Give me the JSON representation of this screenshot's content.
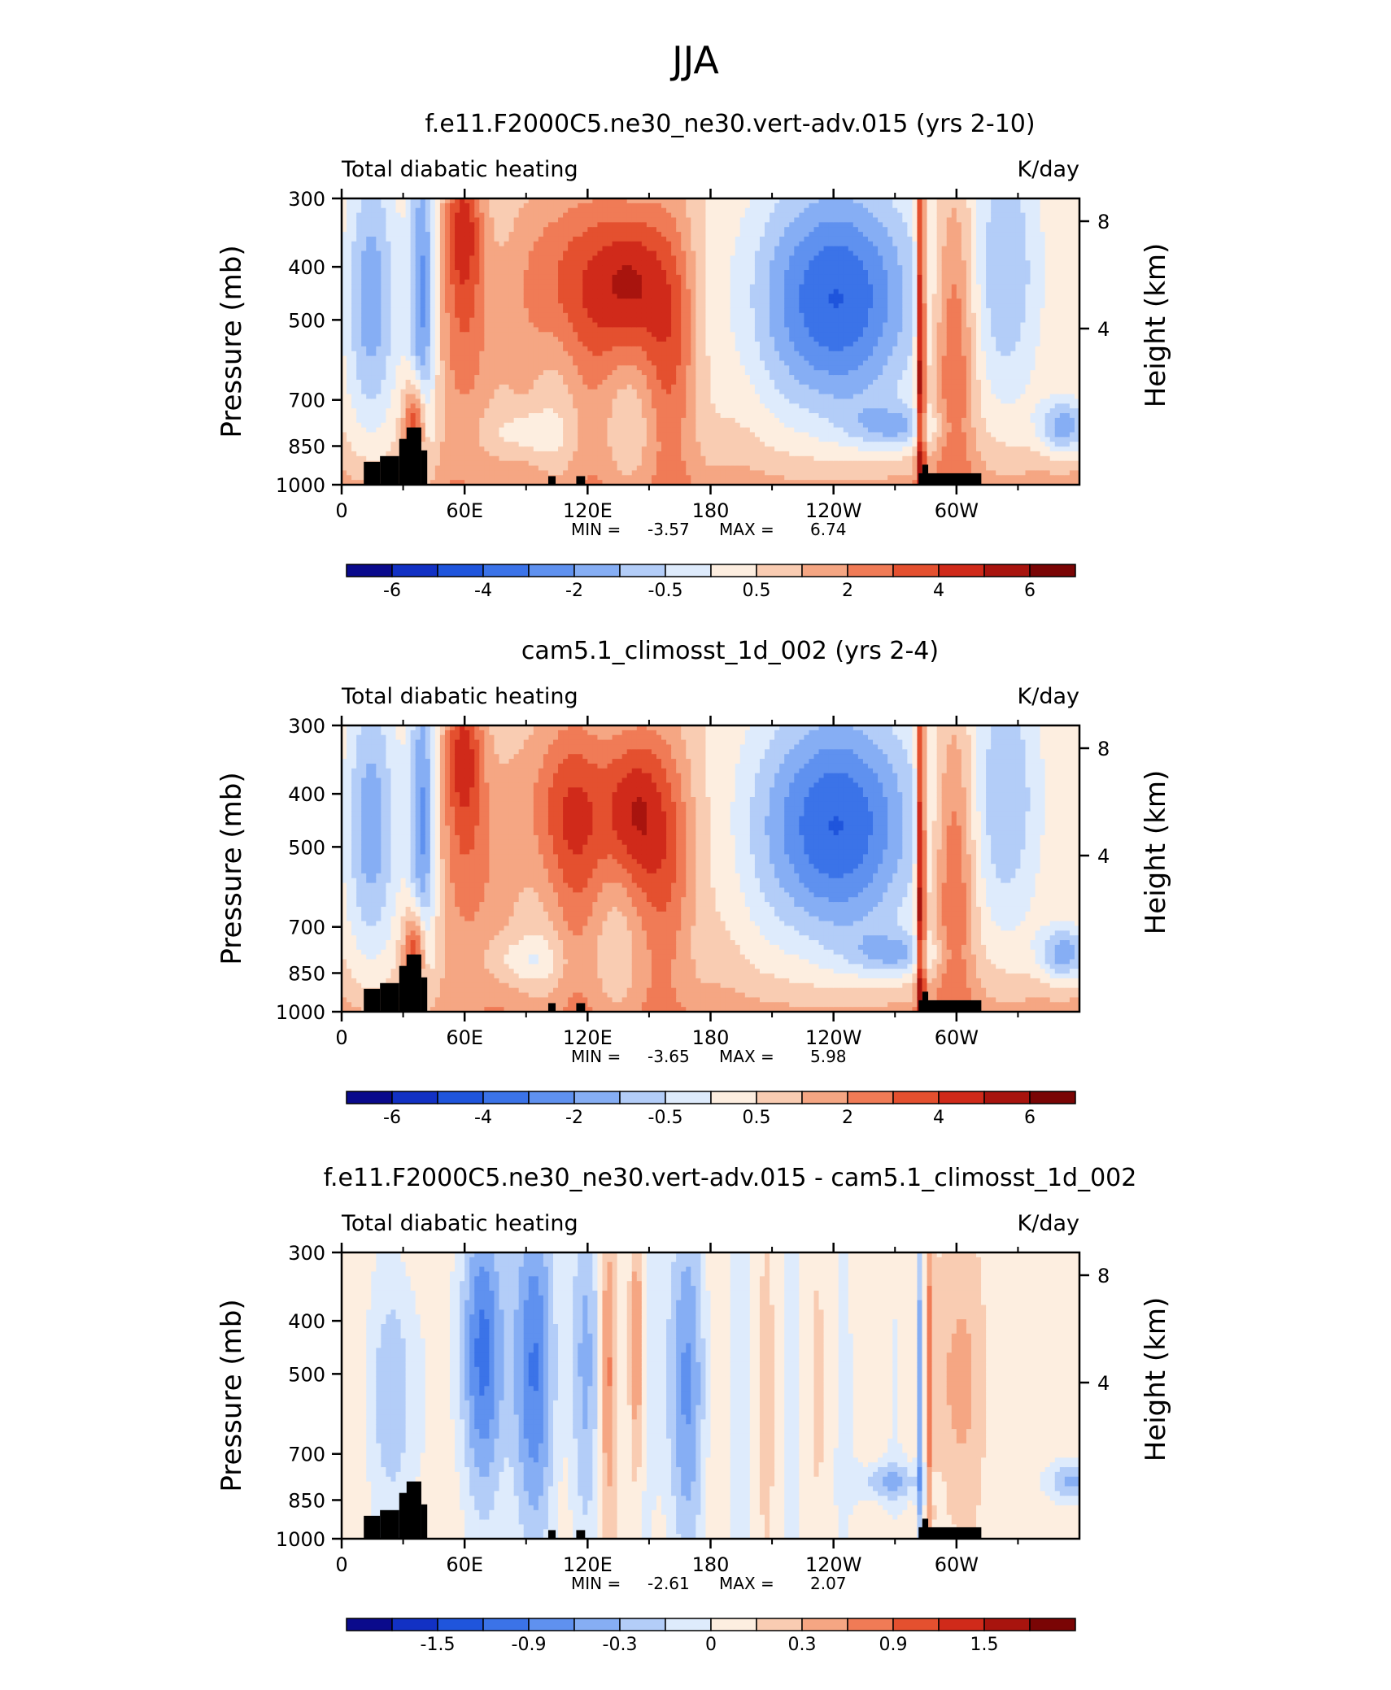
{
  "suptitle": "JJA",
  "chart_data": [
    {
      "type": "heatmap",
      "title": "f.e11.F2000C5.ne30_ne30.vert-adv.015 (yrs 2-10)",
      "left_string": "Total diabatic heating",
      "right_string": "K/day",
      "ylabel": "Pressure (mb)",
      "ylabel_right": "Height (km)",
      "yticks": [
        "300",
        "400",
        "500",
        "700",
        "850",
        "1000"
      ],
      "yticks_right": [
        "8",
        "4"
      ],
      "xticks": [
        "0",
        "60E",
        "120E",
        "180",
        "120W",
        "60W"
      ],
      "min_label": "MIN =",
      "min_value": "-3.57",
      "max_label": "MAX =",
      "max_value": "6.74",
      "colorbar_labels": [
        "-6",
        "-4",
        "-2",
        "-0.5",
        "0.5",
        "2",
        "4",
        "6"
      ],
      "terrain": "black-mask"
    },
    {
      "type": "heatmap",
      "title": "cam5.1_climosst_1d_002 (yrs 2-4)",
      "left_string": "Total diabatic heating",
      "right_string": "K/day",
      "ylabel": "Pressure (mb)",
      "ylabel_right": "Height (km)",
      "yticks": [
        "300",
        "400",
        "500",
        "700",
        "850",
        "1000"
      ],
      "yticks_right": [
        "8",
        "4"
      ],
      "xticks": [
        "0",
        "60E",
        "120E",
        "180",
        "120W",
        "60W"
      ],
      "min_label": "MIN =",
      "min_value": "-3.65",
      "max_label": "MAX =",
      "max_value": "5.98",
      "colorbar_labels": [
        "-6",
        "-4",
        "-2",
        "-0.5",
        "0.5",
        "2",
        "4",
        "6"
      ],
      "terrain": "black-mask"
    },
    {
      "type": "heatmap",
      "title": "f.e11.F2000C5.ne30_ne30.vert-adv.015 - cam5.1_climosst_1d_002",
      "left_string": "Total diabatic heating",
      "right_string": "K/day",
      "ylabel": "Pressure (mb)",
      "ylabel_right": "Height (km)",
      "yticks": [
        "300",
        "400",
        "500",
        "700",
        "850",
        "1000"
      ],
      "yticks_right": [
        "8",
        "4"
      ],
      "xticks": [
        "0",
        "60E",
        "120E",
        "180",
        "120W",
        "60W"
      ],
      "min_label": "MIN =",
      "min_value": "-2.61",
      "max_label": "MAX =",
      "max_value": "2.07",
      "colorbar_labels": [
        "-1.5",
        "-0.9",
        "-0.3",
        "0",
        "0.3",
        "0.9",
        "1.5"
      ],
      "terrain": "black-mask"
    }
  ],
  "colorbar_colors": [
    "#0a0a8c",
    "#1231c4",
    "#1f55dc",
    "#3b73e8",
    "#5f91ef",
    "#86aef4",
    "#b3cdf8",
    "#deebfc",
    "#fdeee0",
    "#f9ccb2",
    "#f5a683",
    "#f07b56",
    "#e4502f",
    "#d02a1a",
    "#a8140e",
    "#7a0505"
  ]
}
